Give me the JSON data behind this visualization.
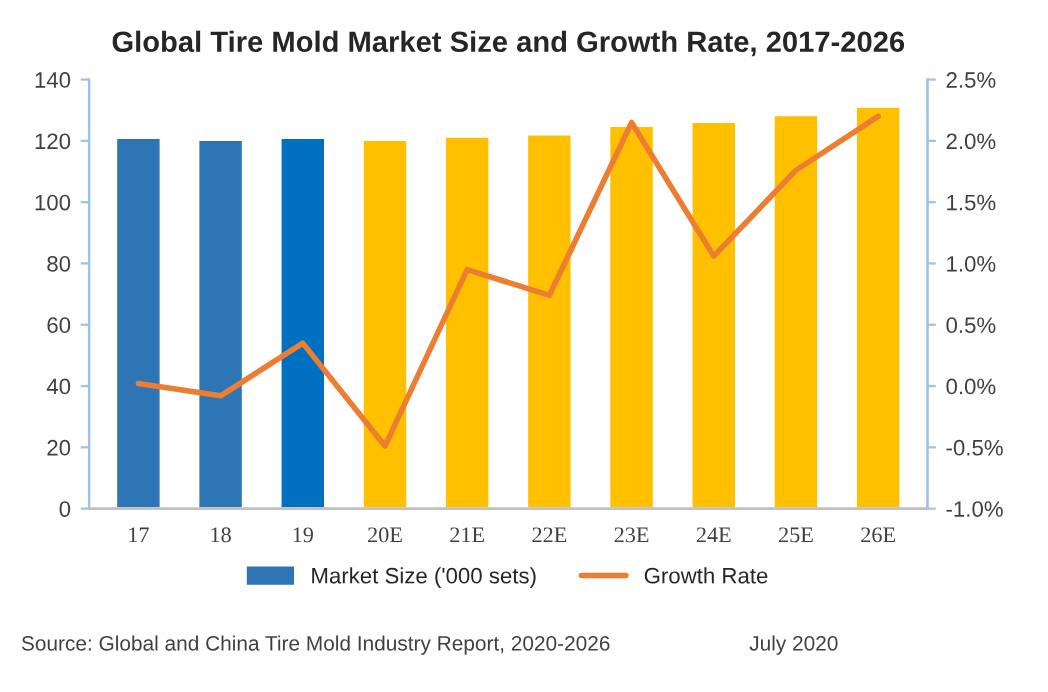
{
  "chart_data": {
    "type": "bar",
    "title": "Global Tire Mold Market Size and Growth Rate, 2017-2026",
    "categories": [
      "17",
      "18",
      "19",
      "20E",
      "21E",
      "22E",
      "23E",
      "24E",
      "25E",
      "26E"
    ],
    "series": [
      {
        "name": "Market Size ('000 sets)",
        "color": "#2e75b6",
        "colors": [
          "#2e75b6",
          "#2e75b6",
          "#0070c0",
          "#ffc000",
          "#ffc000",
          "#ffc000",
          "#ffc000",
          "#ffc000",
          "#ffc000",
          "#ffc000"
        ],
        "values": [
          121.1,
          120.4,
          121.1,
          120.4,
          121.5,
          122.2,
          125,
          126.3,
          128.5,
          131.3
        ]
      },
      {
        "name": "Growth Rate",
        "type": "line",
        "axis": "y2",
        "color": "#ed7d31",
        "values": [
          0.02,
          -0.08,
          0.35,
          -0.49,
          0.95,
          0.74,
          2.15,
          1.06,
          1.76,
          2.2
        ]
      }
    ],
    "ylim": [
      0,
      140
    ],
    "yticks": [
      0,
      20,
      40,
      60,
      80,
      100,
      120,
      140
    ],
    "y2lim": [
      -1.0,
      2.5
    ],
    "y2ticks": [
      {
        "value": -1.0,
        "label": "-1.0%"
      },
      {
        "value": -0.5,
        "label": "-0.5%"
      },
      {
        "value": 0.0,
        "label": "0.0%"
      },
      {
        "value": 0.5,
        "label": "0.5%"
      },
      {
        "value": 1.0,
        "label": "1.0%"
      },
      {
        "value": 1.5,
        "label": "1.5%"
      },
      {
        "value": 2.0,
        "label": "2.0%"
      },
      {
        "value": 2.5,
        "label": "2.5%"
      }
    ],
    "grid": false,
    "legend": "bottom",
    "marker": "none",
    "line_style": "solid",
    "annotations": [
      "Source: Global and China Tire Mold Industry Report, 2020-2026",
      "July 2020"
    ]
  }
}
